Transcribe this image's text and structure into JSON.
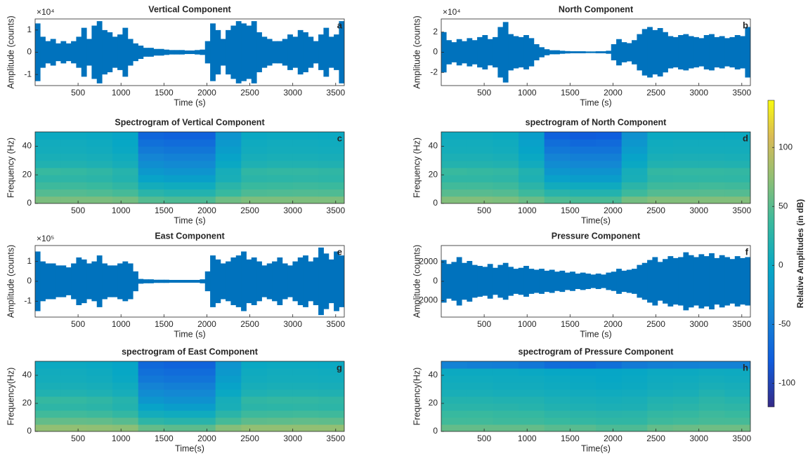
{
  "chart_data": [
    {
      "type": "waveform",
      "title": "Vertical Component",
      "panel_label": "a",
      "xlabel": "Time (s)",
      "ylabel": "Amplitude (counts)",
      "y_multiplier": "×10⁴",
      "color": "#0072bd",
      "xlim": [
        0,
        3600
      ],
      "xticks": [
        500,
        1000,
        1500,
        2000,
        2500,
        3000,
        3500
      ],
      "ylim": [
        -1.5,
        1.5
      ],
      "yticks": [
        -1,
        0,
        1
      ],
      "x": [
        30,
        90,
        150,
        210,
        270,
        330,
        390,
        450,
        510,
        570,
        630,
        690,
        750,
        810,
        870,
        930,
        990,
        1050,
        1110,
        1170,
        1230,
        1290,
        1350,
        1410,
        1470,
        1530,
        1590,
        1650,
        1710,
        1770,
        1830,
        1890,
        1950,
        2010,
        2070,
        2130,
        2190,
        2250,
        2310,
        2370,
        2430,
        2490,
        2550,
        2610,
        2670,
        2730,
        2790,
        2850,
        2910,
        2970,
        3030,
        3090,
        3150,
        3210,
        3270,
        3330,
        3390,
        3450,
        3510,
        3570
      ],
      "values": [
        1.3,
        0.7,
        0.5,
        0.6,
        0.4,
        0.5,
        0.4,
        0.5,
        0.7,
        1.1,
        0.6,
        1.2,
        1.4,
        1.0,
        0.9,
        0.7,
        0.8,
        1.1,
        0.6,
        0.4,
        0.3,
        0.2,
        0.2,
        0.15,
        0.15,
        0.12,
        0.1,
        0.1,
        0.1,
        0.08,
        0.08,
        0.1,
        0.12,
        0.5,
        1.3,
        1.0,
        0.6,
        1.0,
        1.2,
        1.4,
        1.3,
        1.2,
        1.4,
        0.9,
        0.7,
        0.6,
        0.5,
        0.5,
        0.6,
        0.8,
        0.7,
        1.0,
        0.9,
        0.7,
        0.5,
        0.8,
        1.1,
        0.7,
        0.8,
        1.4
      ]
    },
    {
      "type": "waveform",
      "title": "North Component",
      "panel_label": "b",
      "xlabel": "Time (s)",
      "ylabel": "Amplitude (counts)",
      "y_multiplier": "×10⁴",
      "color": "#0072bd",
      "xlim": [
        0,
        3600
      ],
      "xticks": [
        500,
        1000,
        1500,
        2000,
        2500,
        3000,
        3500
      ],
      "ylim": [
        -3.3,
        3.3
      ],
      "yticks": [
        -2,
        0,
        2
      ],
      "x": [
        30,
        90,
        150,
        210,
        270,
        330,
        390,
        450,
        510,
        570,
        630,
        690,
        750,
        810,
        870,
        930,
        990,
        1050,
        1110,
        1170,
        1230,
        1290,
        1350,
        1410,
        1470,
        1530,
        1590,
        1650,
        1710,
        1770,
        1830,
        1890,
        1950,
        2010,
        2070,
        2130,
        2190,
        2250,
        2310,
        2370,
        2430,
        2490,
        2550,
        2610,
        2670,
        2730,
        2790,
        2850,
        2910,
        2970,
        3030,
        3090,
        3150,
        3210,
        3270,
        3330,
        3390,
        3450,
        3510,
        3570
      ],
      "values": [
        2.0,
        1.2,
        1.0,
        1.3,
        1.1,
        1.4,
        1.2,
        1.5,
        1.7,
        1.3,
        1.5,
        2.5,
        3.0,
        1.8,
        1.6,
        1.5,
        1.7,
        1.4,
        0.8,
        0.5,
        0.3,
        0.2,
        0.2,
        0.15,
        0.12,
        0.1,
        0.1,
        0.1,
        0.08,
        0.08,
        0.1,
        0.1,
        0.15,
        0.8,
        1.3,
        1.0,
        0.9,
        1.2,
        1.8,
        2.3,
        2.5,
        2.2,
        2.4,
        2.0,
        1.6,
        1.5,
        1.7,
        1.8,
        1.6,
        1.5,
        1.4,
        1.7,
        1.8,
        1.5,
        1.6,
        1.4,
        1.5,
        1.7,
        1.6,
        2.5
      ]
    },
    {
      "type": "heatmap",
      "title": "Spectrogram of Vertical Component",
      "panel_label": "c",
      "xlabel": "Time (s)",
      "ylabel": "Frequency (Hz)",
      "xlim": [
        0,
        3600
      ],
      "xticks": [
        500,
        1000,
        1500,
        2000,
        2500,
        3000,
        3500
      ],
      "ylim": [
        0,
        50
      ],
      "yticks": [
        0,
        20,
        40
      ],
      "x": [
        150,
        450,
        750,
        1050,
        1350,
        1650,
        1950,
        2250,
        2550,
        2850,
        3150,
        3450
      ],
      "y": [
        2.5,
        7.5,
        12.5,
        17.5,
        22.5,
        27.5,
        32.5,
        37.5,
        42.5,
        47.5
      ],
      "z": [
        [
          65,
          65,
          65,
          62,
          48,
          45,
          45,
          60,
          66,
          66,
          66,
          66
        ],
        [
          48,
          48,
          46,
          42,
          25,
          20,
          20,
          35,
          45,
          46,
          47,
          46
        ],
        [
          38,
          38,
          36,
          30,
          8,
          5,
          5,
          25,
          36,
          37,
          38,
          37
        ],
        [
          28,
          28,
          26,
          20,
          -8,
          -12,
          -12,
          12,
          26,
          27,
          28,
          27
        ],
        [
          35,
          33,
          30,
          22,
          -20,
          -25,
          -25,
          10,
          30,
          32,
          32,
          30
        ],
        [
          18,
          18,
          16,
          10,
          -32,
          -36,
          -36,
          0,
          16,
          18,
          18,
          17
        ],
        [
          12,
          12,
          10,
          5,
          -42,
          -46,
          -46,
          -8,
          10,
          12,
          12,
          11
        ],
        [
          8,
          8,
          6,
          0,
          -52,
          -56,
          -56,
          -15,
          6,
          8,
          8,
          7
        ],
        [
          6,
          6,
          4,
          -2,
          -62,
          -66,
          -66,
          -20,
          4,
          6,
          6,
          5
        ],
        [
          2,
          2,
          0,
          -5,
          -72,
          -76,
          -76,
          -25,
          0,
          2,
          2,
          1
        ]
      ]
    },
    {
      "type": "heatmap",
      "title": "spectrogram of North Component",
      "panel_label": "d",
      "xlabel": "Time(s)",
      "ylabel": "Frequency (Hz)",
      "xlim": [
        0,
        3600
      ],
      "xticks": [
        500,
        1000,
        1500,
        2000,
        2500,
        3000,
        3500
      ],
      "ylim": [
        0,
        50
      ],
      "yticks": [
        0,
        20,
        40
      ],
      "x": [
        150,
        450,
        750,
        1050,
        1350,
        1650,
        1950,
        2250,
        2550,
        2850,
        3150,
        3450
      ],
      "y": [
        2.5,
        7.5,
        12.5,
        17.5,
        22.5,
        27.5,
        32.5,
        37.5,
        42.5,
        47.5
      ],
      "z": [
        [
          68,
          68,
          66,
          58,
          46,
          44,
          44,
          62,
          68,
          68,
          68,
          68
        ],
        [
          50,
          50,
          48,
          38,
          24,
          20,
          20,
          38,
          48,
          48,
          49,
          48
        ],
        [
          40,
          40,
          38,
          26,
          6,
          4,
          4,
          26,
          38,
          39,
          40,
          39
        ],
        [
          30,
          30,
          28,
          16,
          -10,
          -14,
          -14,
          12,
          28,
          29,
          30,
          29
        ],
        [
          36,
          34,
          32,
          18,
          -22,
          -26,
          -26,
          10,
          32,
          33,
          33,
          32
        ],
        [
          20,
          20,
          18,
          6,
          -34,
          -38,
          -38,
          0,
          18,
          19,
          19,
          18
        ],
        [
          14,
          14,
          12,
          0,
          -44,
          -48,
          -48,
          -8,
          12,
          13,
          13,
          12
        ],
        [
          9,
          9,
          7,
          -6,
          -54,
          -58,
          -58,
          -16,
          7,
          8,
          8,
          8
        ],
        [
          7,
          7,
          5,
          -10,
          -64,
          -70,
          -68,
          -22,
          5,
          6,
          6,
          6
        ],
        [
          3,
          3,
          1,
          -15,
          -76,
          -82,
          -80,
          -28,
          1,
          2,
          2,
          2
        ]
      ]
    },
    {
      "type": "waveform",
      "title": "East Component",
      "panel_label": "e",
      "xlabel": "Time (s)",
      "ylabel": "Amplitude (counts)",
      "y_multiplier": "×10⁵",
      "color": "#0072bd",
      "xlim": [
        0,
        3600
      ],
      "xticks": [
        500,
        1000,
        1500,
        2000,
        2500,
        3000,
        3500
      ],
      "ylim": [
        -1.8,
        1.8
      ],
      "yticks": [
        -1,
        0,
        1
      ],
      "x": [
        30,
        90,
        150,
        210,
        270,
        330,
        390,
        450,
        510,
        570,
        630,
        690,
        750,
        810,
        870,
        930,
        990,
        1050,
        1110,
        1170,
        1230,
        1290,
        1350,
        1410,
        1470,
        1530,
        1590,
        1650,
        1710,
        1770,
        1830,
        1890,
        1950,
        2010,
        2070,
        2130,
        2190,
        2250,
        2310,
        2370,
        2430,
        2490,
        2550,
        2610,
        2670,
        2730,
        2790,
        2850,
        2910,
        2970,
        3030,
        3090,
        3150,
        3210,
        3270,
        3330,
        3390,
        3450,
        3510,
        3570
      ],
      "values": [
        1.5,
        1.0,
        0.9,
        0.9,
        0.8,
        0.8,
        0.7,
        0.9,
        1.2,
        1.1,
        0.9,
        1.0,
        1.3,
        0.9,
        0.8,
        0.8,
        0.9,
        1.0,
        0.9,
        0.5,
        0.12,
        0.1,
        0.1,
        0.08,
        0.08,
        0.08,
        0.07,
        0.07,
        0.07,
        0.07,
        0.07,
        0.07,
        0.1,
        0.5,
        1.3,
        1.1,
        0.9,
        1.0,
        1.2,
        1.3,
        1.5,
        1.1,
        1.2,
        1.0,
        0.8,
        0.9,
        1.0,
        1.2,
        0.9,
        0.8,
        1.0,
        1.2,
        1.3,
        1.0,
        1.2,
        1.7,
        1.4,
        1.1,
        1.5,
        1.3
      ]
    },
    {
      "type": "waveform",
      "title": "Pressure Component",
      "panel_label": "f",
      "xlabel": "Time (s)",
      "ylabel": "Amplitude (counts)",
      "color": "#0072bd",
      "xlim": [
        0,
        3600
      ],
      "xticks": [
        500,
        1000,
        1500,
        2000,
        2500,
        3000,
        3500
      ],
      "ylim": [
        -3700,
        3700
      ],
      "yticks": [
        -2000,
        0,
        2000
      ],
      "x": [
        30,
        90,
        150,
        210,
        270,
        330,
        390,
        450,
        510,
        570,
        630,
        690,
        750,
        810,
        870,
        930,
        990,
        1050,
        1110,
        1170,
        1230,
        1290,
        1350,
        1410,
        1470,
        1530,
        1590,
        1650,
        1710,
        1770,
        1830,
        1890,
        1950,
        2010,
        2070,
        2130,
        2190,
        2250,
        2310,
        2370,
        2430,
        2490,
        2550,
        2610,
        2670,
        2730,
        2790,
        2850,
        2910,
        2970,
        3030,
        3090,
        3150,
        3210,
        3270,
        3330,
        3390,
        3450,
        3510,
        3570
      ],
      "values": [
        2200,
        1800,
        2000,
        2500,
        1900,
        2100,
        1700,
        1600,
        1500,
        1800,
        1400,
        1700,
        1900,
        1500,
        1300,
        1400,
        1600,
        1300,
        1200,
        1300,
        1100,
        1200,
        1000,
        1100,
        900,
        1000,
        800,
        900,
        800,
        700,
        800,
        700,
        900,
        1000,
        1300,
        1100,
        1200,
        1300,
        1700,
        1900,
        2200,
        2500,
        2000,
        2300,
        2600,
        2400,
        2500,
        3000,
        2700,
        2500,
        2800,
        2600,
        2900,
        2400,
        2700,
        2500,
        2300,
        2600,
        2400,
        2500
      ]
    },
    {
      "type": "heatmap",
      "title": "spectrogram of East Component",
      "panel_label": "g",
      "xlabel": "Time(s)",
      "ylabel": "Frequency(Hz)",
      "xlim": [
        0,
        3600
      ],
      "xticks": [
        500,
        1000,
        1500,
        2000,
        2500,
        3000,
        3500
      ],
      "ylim": [
        0,
        50
      ],
      "yticks": [
        0,
        20,
        40
      ],
      "x": [
        150,
        450,
        750,
        1050,
        1350,
        1650,
        1950,
        2250,
        2550,
        2850,
        3150,
        3450
      ],
      "y": [
        2.5,
        7.5,
        12.5,
        17.5,
        22.5,
        27.5,
        32.5,
        37.5,
        42.5,
        47.5
      ],
      "z": [
        [
          75,
          75,
          74,
          72,
          55,
          52,
          52,
          70,
          75,
          75,
          75,
          75
        ],
        [
          55,
          55,
          54,
          50,
          28,
          24,
          24,
          42,
          52,
          53,
          54,
          53
        ],
        [
          40,
          40,
          38,
          32,
          8,
          5,
          5,
          26,
          38,
          39,
          40,
          39
        ],
        [
          28,
          28,
          26,
          20,
          -8,
          -14,
          -14,
          12,
          26,
          27,
          28,
          27
        ],
        [
          34,
          33,
          30,
          22,
          -22,
          -28,
          -28,
          10,
          30,
          32,
          32,
          30
        ],
        [
          18,
          18,
          16,
          10,
          -34,
          -38,
          -38,
          0,
          16,
          18,
          18,
          17
        ],
        [
          12,
          12,
          10,
          5,
          -44,
          -48,
          -48,
          -8,
          10,
          12,
          12,
          11
        ],
        [
          8,
          8,
          6,
          0,
          -54,
          -58,
          -58,
          -15,
          6,
          8,
          8,
          7
        ],
        [
          6,
          6,
          4,
          -2,
          -62,
          -66,
          -66,
          -20,
          4,
          6,
          6,
          5
        ],
        [
          2,
          2,
          0,
          -5,
          -70,
          -74,
          -74,
          -25,
          0,
          2,
          2,
          1
        ]
      ]
    },
    {
      "type": "heatmap",
      "title": "spectrogram of Pressure Component",
      "panel_label": "h",
      "xlabel": "Time(s)",
      "ylabel": "Frequency(Hz)",
      "xlim": [
        0,
        3600
      ],
      "xticks": [
        500,
        1000,
        1500,
        2000,
        2500,
        3000,
        3500
      ],
      "ylim": [
        0,
        50
      ],
      "yticks": [
        0,
        20,
        40
      ],
      "x": [
        150,
        450,
        750,
        1050,
        1350,
        1650,
        1950,
        2250,
        2550,
        2850,
        3150,
        3450
      ],
      "y": [
        2.5,
        7.5,
        12.5,
        17.5,
        22.5,
        27.5,
        32.5,
        37.5,
        42.5,
        47.5
      ],
      "z": [
        [
          55,
          55,
          55,
          55,
          50,
          50,
          45,
          45,
          55,
          58,
          60,
          60
        ],
        [
          40,
          40,
          38,
          38,
          35,
          32,
          30,
          30,
          38,
          40,
          42,
          42
        ],
        [
          35,
          36,
          34,
          33,
          28,
          26,
          24,
          25,
          32,
          34,
          38,
          36
        ],
        [
          25,
          25,
          24,
          22,
          18,
          16,
          14,
          15,
          22,
          25,
          30,
          28
        ],
        [
          20,
          20,
          18,
          18,
          14,
          12,
          10,
          12,
          18,
          20,
          26,
          22
        ],
        [
          12,
          12,
          10,
          10,
          8,
          6,
          5,
          6,
          10,
          12,
          18,
          14
        ],
        [
          8,
          8,
          6,
          6,
          4,
          2,
          0,
          2,
          6,
          8,
          12,
          10
        ],
        [
          5,
          5,
          4,
          4,
          2,
          0,
          -2,
          0,
          4,
          5,
          8,
          6
        ],
        [
          2,
          2,
          2,
          0,
          -2,
          -4,
          -4,
          -2,
          2,
          2,
          4,
          3
        ],
        [
          -45,
          -48,
          -50,
          -55,
          -65,
          -68,
          -62,
          -52,
          -48,
          -46,
          -45,
          -45
        ]
      ]
    }
  ],
  "colorbar": {
    "label": "Relative Amplitudes  (in dB)",
    "lim": [
      -120,
      140
    ],
    "ticks": [
      -100,
      -50,
      0,
      50,
      100
    ]
  }
}
